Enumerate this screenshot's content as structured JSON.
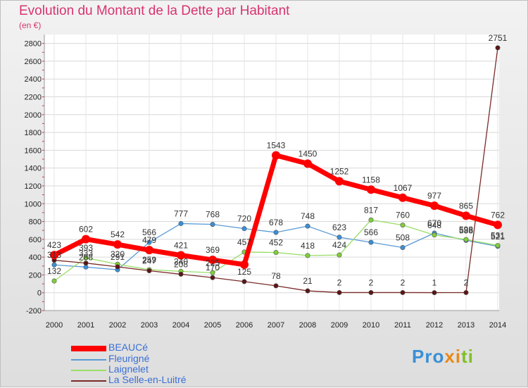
{
  "title": "Evolution du Montant de la Dette par Habitant",
  "subtitle": "(en €)",
  "logo": {
    "text": "Proxiti",
    "letters": [
      "P",
      "r",
      "o",
      "x",
      "i",
      "t",
      "i"
    ],
    "colors": [
      "#3a8fd6",
      "#3a8fd6",
      "#3a8fd6",
      "#e8891c",
      "#e8891c",
      "#7fbf2a",
      "#7fbf2a"
    ]
  },
  "chart_data": {
    "type": "line",
    "categories": [
      "2000",
      "2001",
      "2002",
      "2003",
      "2004",
      "2005",
      "2006",
      "2007",
      "2008",
      "2009",
      "2010",
      "2011",
      "2012",
      "2013",
      "2014"
    ],
    "y_ticks": [
      -200,
      0,
      200,
      400,
      600,
      800,
      1000,
      1200,
      1400,
      1600,
      1800,
      2000,
      2200,
      2400,
      2600,
      2800
    ],
    "ylim": [
      -200,
      2900
    ],
    "grid": true,
    "legend_position": "bottom-left",
    "series": [
      {
        "name": "BEAUCé",
        "color": "#ff0000",
        "marker": "#ff0000",
        "values": [
          423,
          602,
          542,
          479,
          421,
          369,
          316,
          1543,
          1450,
          1252,
          1158,
          1067,
          977,
          865,
          762
        ],
        "labels": [
          "423",
          "602",
          "542",
          "479",
          "421",
          "369",
          "",
          "1543",
          "1450",
          "1252",
          "1158",
          "1067",
          "977",
          "865",
          "762"
        ]
      },
      {
        "name": "Fleurigné",
        "color": "#5b9bd5",
        "marker": "#3a8fd6",
        "values": [
          313,
          288,
          258,
          566,
          777,
          768,
          720,
          678,
          748,
          623,
          566,
          508,
          670,
          588,
          521
        ],
        "labels": [
          "313",
          "288",
          "",
          "566",
          "777",
          "768",
          "720",
          "678",
          "748",
          "623",
          "566",
          "508",
          "670",
          "588",
          "521"
        ]
      },
      {
        "name": "Laignelet",
        "color": "#99dd66",
        "marker": "#7fcf3a",
        "values": [
          132,
          393,
          320,
          259,
          240,
          225,
          457,
          452,
          418,
          424,
          817,
          760,
          648,
          598,
          531
        ],
        "labels": [
          "132",
          "393",
          "320",
          "259",
          "240",
          "225",
          "457",
          "452",
          "418",
          "424",
          "817",
          "760",
          "648",
          "598",
          "531"
        ]
      },
      {
        "name": "La Selle-en-Luitré",
        "color": "#7a2a2a",
        "marker": "#5a1515",
        "values": [
          365,
          333,
          291,
          247,
          208,
          170,
          125,
          78,
          21,
          2,
          2,
          2,
          1,
          2,
          2751
        ],
        "labels": [
          "",
          "333",
          "291",
          "247",
          "208",
          "170",
          "125",
          "78",
          "21",
          "2",
          "2",
          "2",
          "1",
          "2",
          "2751"
        ]
      }
    ]
  }
}
